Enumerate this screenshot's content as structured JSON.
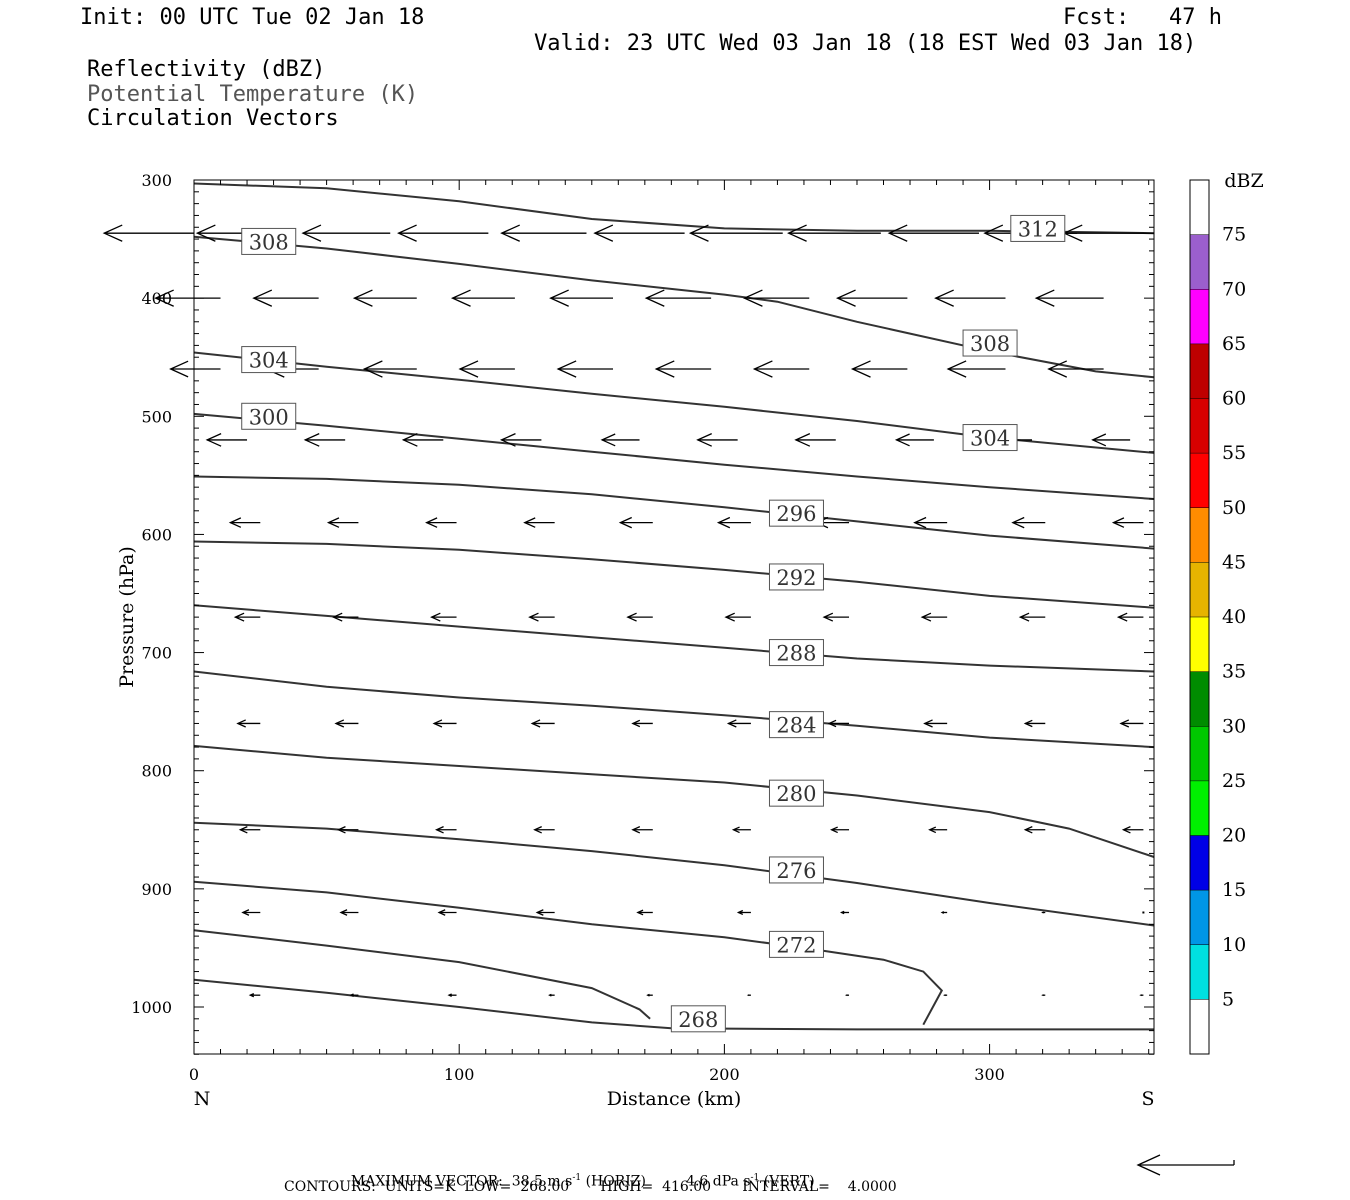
{
  "header": {
    "init": "Init: 00 UTC Tue 02 Jan 18",
    "fcst": "Fcst:   47 h",
    "valid": "Valid: 23 UTC Wed 03 Jan 18 (18 EST Wed 03 Jan 18)",
    "field1": "Reflectivity (dBZ)",
    "field2": "Potential Temperature (K)",
    "field3": "Circulation Vectors"
  },
  "footer": {
    "max_vector_label": "MAXIMUM VECTOR:",
    "max_vector_horiz": "38.5 m s",
    "horiz_exp": "-1",
    "horiz_tag": "(HORIZ)",
    "max_vector_vert": "4.6 dPa s",
    "vert_exp": "-1",
    "vert_tag": "(VERT)",
    "contours": "CONTOURS:  UNITS=K  LOW=  268.00       HIGH=  416.00       INTERVAL=    4.0000"
  },
  "colors": {
    "contour": "#333333",
    "colorbar": [
      "#ffffff",
      "#00e0e0",
      "#0096e6",
      "#0000e6",
      "#00f000",
      "#00c800",
      "#008c00",
      "#ffff00",
      "#e6b400",
      "#ff8c00",
      "#ff0000",
      "#d70000",
      "#be0000",
      "#ff00ff",
      "#9b5fcd",
      "#ffffff"
    ]
  },
  "chart_data": {
    "type": "cross-section",
    "xlabel": "Distance (km)",
    "ylabel": "Pressure (hPa)",
    "xlim": [
      0,
      362
    ],
    "ylim": [
      1040,
      300
    ],
    "x_ticks": [
      0,
      100,
      200,
      300
    ],
    "y_ticks": [
      300,
      400,
      500,
      600,
      700,
      800,
      900,
      1000
    ],
    "end_labels": {
      "left": "N",
      "right": "S"
    },
    "colorbar": {
      "units": "dBZ",
      "levels": [
        5,
        10,
        15,
        20,
        25,
        30,
        35,
        40,
        45,
        50,
        55,
        60,
        65,
        70,
        75
      ]
    },
    "contours": [
      {
        "value": 312,
        "label": "312",
        "label_pos": [
          308,
          341
        ],
        "points": [
          [
            0,
            303
          ],
          [
            50,
            307
          ],
          [
            100,
            318
          ],
          [
            150,
            333
          ],
          [
            200,
            341
          ],
          [
            250,
            343
          ],
          [
            300,
            343
          ],
          [
            362,
            345
          ]
        ]
      },
      {
        "value": 308,
        "label": "308",
        "label_pos": [
          18,
          352
        ],
        "points": [
          [
            0,
            348
          ],
          [
            50,
            358
          ],
          [
            100,
            371
          ],
          [
            150,
            385
          ],
          [
            200,
            397
          ],
          [
            220,
            403
          ],
          [
            250,
            420
          ],
          [
            300,
            445
          ],
          [
            340,
            462
          ],
          [
            362,
            467
          ]
        ]
      },
      {
        "value": 308,
        "label": "308",
        "label_pos": [
          290,
          438
        ],
        "points": []
      },
      {
        "value": 304,
        "label": "304",
        "label_pos": [
          18,
          452
        ],
        "points": [
          [
            0,
            446
          ],
          [
            50,
            458
          ],
          [
            100,
            469
          ],
          [
            150,
            481
          ],
          [
            200,
            492
          ],
          [
            250,
            504
          ],
          [
            300,
            518
          ],
          [
            362,
            531
          ]
        ]
      },
      {
        "value": 304,
        "label": "304",
        "label_pos": [
          290,
          518
        ],
        "points": []
      },
      {
        "value": 300,
        "label": "300",
        "label_pos": [
          18,
          500
        ],
        "points": [
          [
            0,
            498
          ],
          [
            50,
            508
          ],
          [
            100,
            519
          ],
          [
            150,
            530
          ],
          [
            200,
            541
          ],
          [
            250,
            551
          ],
          [
            300,
            560
          ],
          [
            362,
            570
          ]
        ]
      },
      {
        "value": 296,
        "label": "296",
        "label_pos": [
          217,
          582
        ],
        "points": [
          [
            0,
            551
          ],
          [
            50,
            553
          ],
          [
            100,
            558
          ],
          [
            150,
            566
          ],
          [
            200,
            577
          ],
          [
            250,
            589
          ],
          [
            300,
            601
          ],
          [
            362,
            612
          ]
        ]
      },
      {
        "value": 292,
        "label": "292",
        "label_pos": [
          217,
          636
        ],
        "points": [
          [
            0,
            606
          ],
          [
            50,
            608
          ],
          [
            100,
            613
          ],
          [
            150,
            621
          ],
          [
            200,
            630
          ],
          [
            250,
            640
          ],
          [
            300,
            652
          ],
          [
            362,
            662
          ]
        ]
      },
      {
        "value": 288,
        "label": "288",
        "label_pos": [
          217,
          700
        ],
        "points": [
          [
            0,
            660
          ],
          [
            50,
            669
          ],
          [
            100,
            678
          ],
          [
            150,
            687
          ],
          [
            200,
            696
          ],
          [
            250,
            705
          ],
          [
            300,
            711
          ],
          [
            362,
            716
          ]
        ]
      },
      {
        "value": 284,
        "label": "284",
        "label_pos": [
          217,
          761
        ],
        "points": [
          [
            0,
            716
          ],
          [
            50,
            729
          ],
          [
            100,
            738
          ],
          [
            150,
            745
          ],
          [
            200,
            753
          ],
          [
            250,
            762
          ],
          [
            300,
            772
          ],
          [
            362,
            780
          ]
        ]
      },
      {
        "value": 280,
        "label": "280",
        "label_pos": [
          217,
          819
        ],
        "points": [
          [
            0,
            779
          ],
          [
            50,
            789
          ],
          [
            100,
            796
          ],
          [
            150,
            803
          ],
          [
            200,
            810
          ],
          [
            250,
            821
          ],
          [
            300,
            835
          ],
          [
            330,
            849
          ],
          [
            362,
            873
          ]
        ]
      },
      {
        "value": 276,
        "label": "276",
        "label_pos": [
          217,
          884
        ],
        "points": [
          [
            0,
            844
          ],
          [
            50,
            849
          ],
          [
            100,
            858
          ],
          [
            150,
            868
          ],
          [
            200,
            880
          ],
          [
            250,
            895
          ],
          [
            300,
            912
          ],
          [
            362,
            931
          ]
        ]
      },
      {
        "value": 272,
        "label": "272",
        "label_pos": [
          217,
          947
        ],
        "points": [
          [
            0,
            894
          ],
          [
            50,
            903
          ],
          [
            100,
            916
          ],
          [
            150,
            930
          ],
          [
            200,
            941
          ],
          [
            230,
            950
          ],
          [
            260,
            960
          ],
          [
            275,
            970
          ],
          [
            282,
            986
          ],
          [
            275,
            1015
          ]
        ]
      },
      {
        "value": 268,
        "label": "268",
        "label_pos": [
          180,
          1010
        ],
        "points": [
          [
            0,
            935
          ],
          [
            50,
            948
          ],
          [
            100,
            962
          ],
          [
            150,
            984
          ],
          [
            168,
            1002
          ],
          [
            172,
            1010
          ]
        ]
      },
      {
        "value": 268,
        "label": "",
        "label_pos": null,
        "points": [
          [
            0,
            977
          ],
          [
            50,
            988
          ],
          [
            100,
            1000
          ],
          [
            150,
            1013
          ],
          [
            180,
            1018
          ],
          [
            250,
            1019
          ],
          [
            300,
            1019
          ],
          [
            362,
            1019
          ]
        ]
      }
    ],
    "vector_rows": [
      {
        "p": 345,
        "x": [
          0,
          37,
          74,
          111,
          148,
          185,
          222,
          259,
          296,
          333,
          362
        ],
        "u": [
          -36,
          -38,
          -35,
          -36,
          -34,
          -36,
          -37,
          -37,
          -36,
          -37,
          -36
        ],
        "w": [
          0,
          0,
          0,
          0,
          0,
          0,
          0,
          0,
          0,
          0,
          0
        ]
      },
      {
        "p": 400,
        "x": [
          10,
          47,
          84,
          121,
          158,
          195,
          232,
          269,
          306,
          343
        ],
        "u": [
          -26,
          -26,
          -25,
          -25,
          -25,
          -26,
          -26,
          -28,
          -28,
          -27
        ],
        "w": [
          0,
          0,
          0,
          0,
          0,
          0,
          0,
          0,
          0,
          0
        ]
      },
      {
        "p": 460,
        "x": [
          10,
          47,
          84,
          121,
          158,
          195,
          232,
          269,
          306,
          343
        ],
        "u": [
          -20,
          -21,
          -21,
          -22,
          -22,
          -22,
          -22,
          -22,
          -23,
          -22
        ],
        "w": [
          0,
          0,
          0,
          0,
          0,
          0,
          0,
          0,
          0,
          0
        ]
      },
      {
        "p": 520,
        "x": [
          20,
          57,
          94,
          131,
          168,
          205,
          242,
          279,
          316,
          353
        ],
        "u": [
          -16,
          -16,
          -16,
          -16,
          -15,
          -16,
          -16,
          -15,
          -16,
          -15
        ],
        "w": [
          0,
          0,
          0,
          0,
          0,
          0,
          0,
          0,
          0,
          0
        ]
      },
      {
        "p": 590,
        "x": [
          25,
          62,
          99,
          136,
          173,
          210,
          247,
          284,
          321,
          358
        ],
        "u": [
          -12,
          -12,
          -12,
          -12,
          -13,
          -13,
          -13,
          -13,
          -13,
          -12
        ],
        "w": [
          0,
          0,
          0,
          0,
          0,
          0,
          0,
          0,
          0,
          0
        ]
      },
      {
        "p": 670,
        "x": [
          25,
          62,
          99,
          136,
          173,
          210,
          247,
          284,
          321,
          358
        ],
        "u": [
          -10,
          -10,
          -10,
          -10,
          -10,
          -10,
          -10,
          -10,
          -10,
          -10
        ],
        "w": [
          0,
          0,
          0,
          0,
          0,
          0,
          0,
          0,
          0,
          0
        ]
      },
      {
        "p": 760,
        "x": [
          25,
          62,
          99,
          136,
          173,
          210,
          247,
          284,
          321,
          358
        ],
        "u": [
          -9,
          -9,
          -9,
          -9,
          -8,
          -9,
          -8,
          -9,
          -8,
          -9
        ],
        "w": [
          0,
          0,
          0,
          0,
          0,
          0,
          0,
          0,
          0,
          0
        ]
      },
      {
        "p": 850,
        "x": [
          25,
          62,
          99,
          136,
          173,
          210,
          247,
          284,
          321,
          358
        ],
        "u": [
          -8,
          -8,
          -8,
          -8,
          -8,
          -7,
          -7,
          -7,
          -8,
          -8
        ],
        "w": [
          0,
          0,
          0,
          0,
          0,
          0,
          0,
          0,
          0,
          0
        ]
      },
      {
        "p": 920,
        "x": [
          25,
          62,
          99,
          136,
          173,
          210,
          247,
          284,
          321,
          358
        ],
        "u": [
          -7,
          -7,
          -7,
          -7,
          -6,
          -5,
          -3,
          -2,
          -1,
          0
        ],
        "w": [
          0,
          0,
          0,
          0,
          0,
          0,
          0,
          0,
          0,
          0
        ]
      },
      {
        "p": 990,
        "x": [
          25,
          62,
          99,
          136,
          173,
          210,
          247,
          284,
          321,
          358
        ],
        "u": [
          -4,
          -3,
          -3,
          -2,
          -2,
          -1,
          -1,
          -1,
          -1,
          -1
        ],
        "w": [
          0,
          0,
          0,
          0,
          0,
          0,
          0,
          0,
          0,
          0
        ]
      }
    ]
  }
}
